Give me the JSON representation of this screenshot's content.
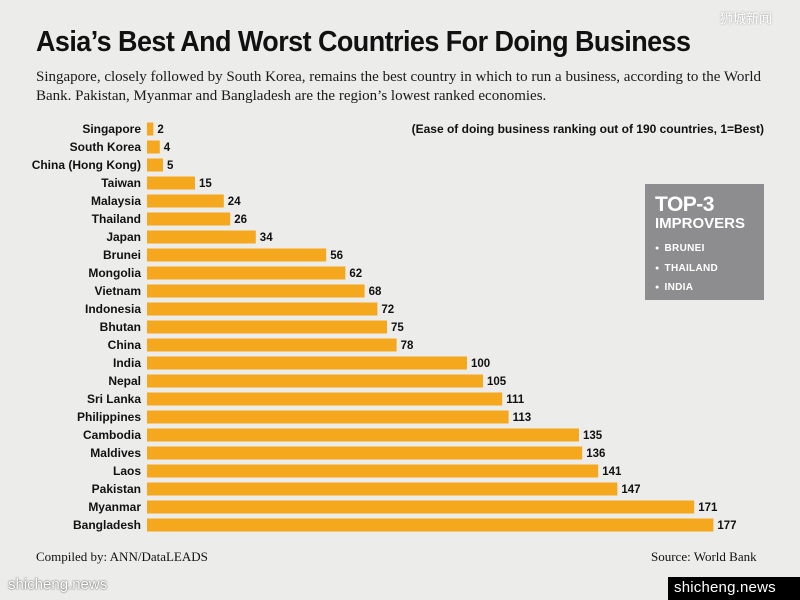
{
  "watermark_top": "狮城新闻",
  "title": "Asia’s Best And Worst Countries For Doing Business",
  "subtitle": "Singapore, closely followed by South Korea, remains the best country in which to run a business, according to the World Bank. Pakistan, Myanmar and Bangladesh are the region’s lowest ranked economies.",
  "note": "(Ease of doing business ranking out of 190 countries, 1=Best)",
  "improvers": {
    "heading_1": "TOP-3",
    "heading_2": "IMPROVERS",
    "items": [
      "BRUNEI",
      "THAILAND",
      "INDIA"
    ],
    "box_color": "#8d8d8f"
  },
  "footer": {
    "compiled": "Compiled by: ANN/DataLEADS",
    "source": "Source: World Bank"
  },
  "watermarks": {
    "left": "shicheng.news",
    "right": "shicheng.news"
  },
  "colors": {
    "bar": "#f5a81d",
    "background": "#ececea"
  },
  "chart_data": {
    "type": "bar",
    "orientation": "horizontal",
    "title": "Asia’s Best And Worst Countries For Doing Business",
    "categories": [
      "Singapore",
      "South Korea",
      "China (Hong Kong)",
      "Taiwan",
      "Malaysia",
      "Thailand",
      "Japan",
      "Brunei",
      "Mongolia",
      "Vietnam",
      "Indonesia",
      "Bhutan",
      "China",
      "India",
      "Nepal",
      "Sri Lanka",
      "Philippines",
      "Cambodia",
      "Maldives",
      "Laos",
      "Pakistan",
      "Myanmar",
      "Bangladesh"
    ],
    "values": [
      2,
      4,
      5,
      15,
      24,
      26,
      34,
      56,
      62,
      68,
      72,
      75,
      78,
      100,
      105,
      111,
      113,
      135,
      136,
      141,
      147,
      171,
      177
    ],
    "xlim": [
      0,
      190
    ],
    "xlabel": "",
    "ylabel": "",
    "grid": false,
    "data_labels": true
  }
}
